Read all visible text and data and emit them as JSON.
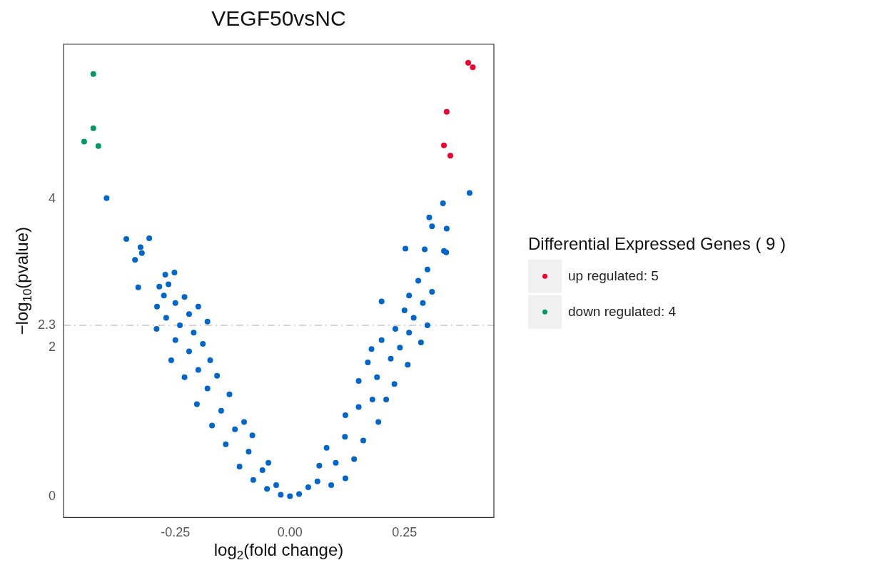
{
  "chart_data": {
    "type": "scatter",
    "title": "VEGF50vsNC",
    "xlabel": "log$_{2}$(fold change)",
    "ylabel": "−log$_{10}$(pvalue)",
    "legend_title": "Differential Expressed Genes ( 9 )",
    "legend": "right",
    "grid": false,
    "marker": "circle",
    "xlim": [
      -0.494,
      0.445
    ],
    "ylim": [
      -0.286,
      6.08
    ],
    "xticks": [
      -0.25,
      {
        "value": 0,
        "label": "0.00"
      },
      0.25
    ],
    "yticks": [
      0,
      2,
      2.3,
      4
    ],
    "ref_lines": [
      {
        "axis": "y",
        "value": 2.3,
        "color": "#c8c8c8",
        "line_style": "dashdot"
      }
    ],
    "series": [
      {
        "color": "#0066cc",
        "x": [
          0,
          -0.02,
          -0.05,
          -0.03,
          -0.08,
          -0.06,
          -0.11,
          -0.047,
          -0.09,
          -0.14,
          -0.082,
          -0.12,
          -0.17,
          -0.1,
          -0.15,
          -0.203,
          -0.132,
          -0.18,
          -0.159,
          -0.23,
          -0.2,
          -0.259,
          -0.174,
          -0.22,
          -0.19,
          -0.25,
          -0.291,
          -0.21,
          -0.24,
          -0.18,
          -0.27,
          -0.22,
          -0.29,
          -0.25,
          -0.2,
          -0.275,
          -0.23,
          -0.265,
          -0.252,
          -0.272,
          -0.285,
          -0.331,
          -0.338,
          -0.323,
          -0.326,
          -0.357,
          -0.307,
          -0.4,
          0.02,
          0.04,
          0.06,
          0.09,
          0.121,
          0.064,
          0.1,
          0.14,
          0.08,
          0.16,
          0.12,
          0.193,
          0.121,
          0.15,
          0.18,
          0.21,
          0.228,
          0.15,
          0.19,
          0.257,
          0.17,
          0.22,
          0.178,
          0.24,
          0.286,
          0.2,
          0.26,
          0.23,
          0.3,
          0.27,
          0.25,
          0.2,
          0.29,
          0.26,
          0.31,
          0.28,
          0.3,
          0.252,
          0.294,
          0.336,
          0.341,
          0.342,
          0.31,
          0.304,
          0.334,
          0.392
        ],
        "values": [
          0,
          0.02,
          0.1,
          0.15,
          0.22,
          0.35,
          0.4,
          0.45,
          0.6,
          0.7,
          0.82,
          0.9,
          0.95,
          1.0,
          1.15,
          1.24,
          1.37,
          1.45,
          1.62,
          1.6,
          1.7,
          1.83,
          1.83,
          1.95,
          2.05,
          2.1,
          2.25,
          2.2,
          2.3,
          2.35,
          2.4,
          2.45,
          2.55,
          2.6,
          2.55,
          2.7,
          2.68,
          2.85,
          3.01,
          2.98,
          2.82,
          2.81,
          3.18,
          3.27,
          3.35,
          3.46,
          3.47,
          4.01,
          0.03,
          0.12,
          0.2,
          0.15,
          0.24,
          0.41,
          0.45,
          0.5,
          0.65,
          0.75,
          0.8,
          1.0,
          1.09,
          1.2,
          1.3,
          1.3,
          1.51,
          1.55,
          1.6,
          1.77,
          1.8,
          1.85,
          1.98,
          2.0,
          2.07,
          2.1,
          2.2,
          2.25,
          2.3,
          2.4,
          2.5,
          2.62,
          2.6,
          2.7,
          2.75,
          2.9,
          3.05,
          3.33,
          3.32,
          3.3,
          3.28,
          3.6,
          3.63,
          3.75,
          3.94,
          4.08
        ]
      },
      {
        "name": "up regulated: 5",
        "color": "#ee0033",
        "x": [
          0.389,
          0.399,
          0.342,
          0.336,
          0.35
        ],
        "values": [
          5.83,
          5.77,
          5.17,
          4.72,
          4.58
        ]
      },
      {
        "name": "down regulated: 4",
        "color": "#009966",
        "x": [
          -0.429,
          -0.429,
          -0.449,
          -0.418
        ],
        "values": [
          5.68,
          4.95,
          4.77,
          4.71
        ]
      }
    ]
  }
}
